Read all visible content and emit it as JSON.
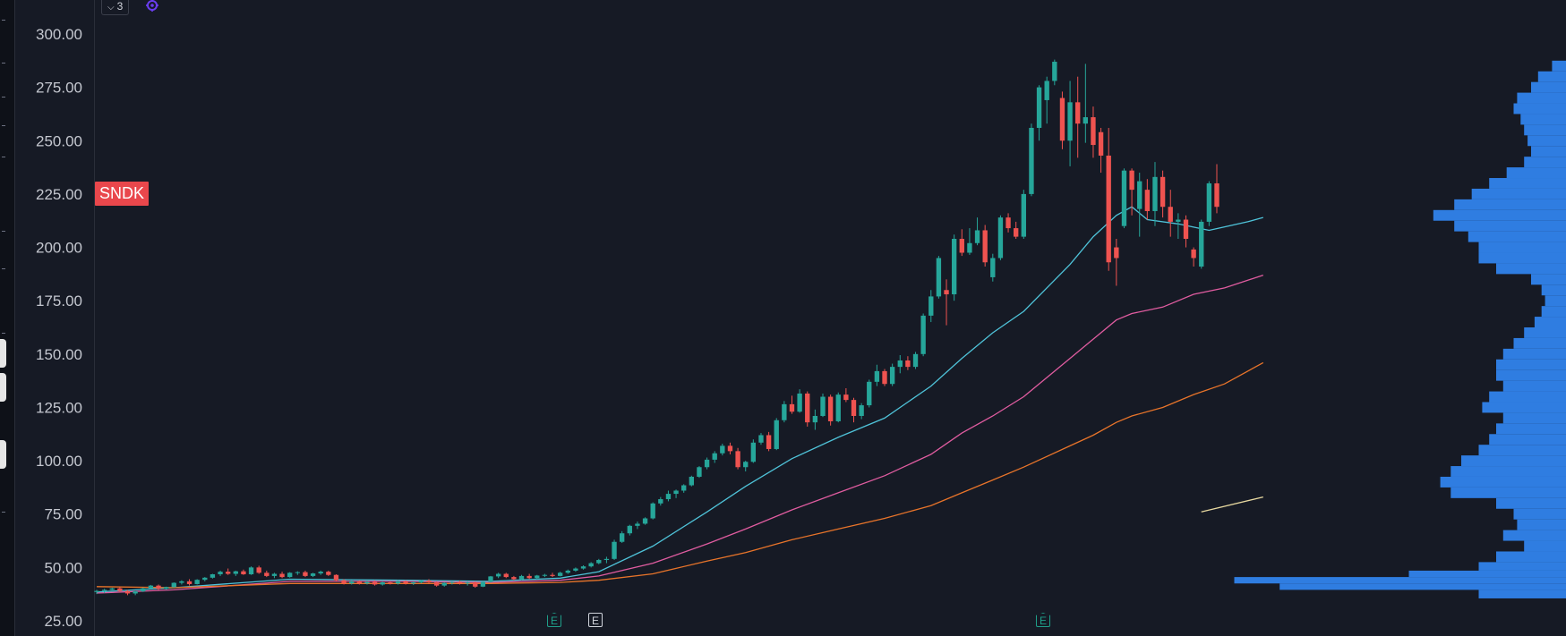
{
  "header": {
    "legend_count": "3",
    "legend_chevron_icon": "chevron-down-icon",
    "indicator_icon": "settings-circle-icon",
    "indicator_color": "#6a3df0"
  },
  "symbol": {
    "ticker": "SNDK",
    "badge_color": "#e9474c"
  },
  "events": [
    {
      "label": "E",
      "kind": "earnings"
    },
    {
      "label": "E",
      "kind": "other"
    },
    {
      "label": "E",
      "kind": "earnings"
    }
  ],
  "colors": {
    "background": "#161a25",
    "up": "#26a69a",
    "down": "#ef5350",
    "ma_fast": "#4fc3d9",
    "ma_mid": "#e05ca0",
    "ma_slow": "#e8742a",
    "ma_short_segment": "#e8d9a0",
    "volume_profile": "#2f7de1"
  },
  "chart_data": {
    "type": "candlestick",
    "y_axis": {
      "range": [
        25,
        315
      ],
      "tick_labels": [
        "300.00",
        "275.00",
        "250.00",
        "225.00",
        "200.00",
        "175.00",
        "150.00",
        "125.00",
        "100.00",
        "75.00",
        "50.00",
        "25.00"
      ],
      "tick_values": [
        300,
        275,
        250,
        225,
        200,
        175,
        150,
        125,
        100,
        75,
        50,
        25
      ],
      "position": "left"
    },
    "grid": false,
    "candles_ohlc": [
      [
        38.5,
        39.5,
        37.5,
        39.0
      ],
      [
        39.0,
        40.0,
        38.0,
        39.5
      ],
      [
        39.5,
        40.5,
        38.8,
        40.2
      ],
      [
        40.2,
        40.8,
        38.5,
        39.0
      ],
      [
        39.0,
        39.5,
        37.0,
        37.8
      ],
      [
        37.8,
        39.0,
        37.0,
        38.8
      ],
      [
        38.8,
        40.5,
        38.5,
        40.2
      ],
      [
        40.2,
        41.8,
        40.0,
        41.5
      ],
      [
        41.5,
        42.0,
        39.5,
        40.0
      ],
      [
        40.0,
        41.0,
        39.5,
        40.8
      ],
      [
        40.8,
        43.0,
        40.5,
        42.8
      ],
      [
        42.8,
        44.0,
        42.0,
        43.5
      ],
      [
        43.5,
        44.5,
        41.5,
        42.2
      ],
      [
        42.2,
        44.5,
        42.0,
        44.2
      ],
      [
        44.2,
        45.5,
        43.5,
        45.2
      ],
      [
        45.2,
        47.0,
        44.8,
        46.8
      ],
      [
        46.8,
        48.5,
        46.0,
        48.0
      ],
      [
        48.0,
        49.5,
        46.5,
        47.0
      ],
      [
        47.0,
        48.5,
        46.0,
        48.2
      ],
      [
        48.2,
        49.0,
        46.5,
        46.8
      ],
      [
        46.8,
        50.5,
        46.5,
        50.0
      ],
      [
        50.0,
        50.8,
        47.0,
        47.5
      ],
      [
        47.5,
        48.5,
        45.5,
        46.0
      ],
      [
        46.0,
        47.5,
        45.0,
        47.0
      ],
      [
        47.0,
        48.0,
        45.0,
        45.5
      ],
      [
        45.5,
        47.8,
        45.2,
        47.5
      ],
      [
        47.5,
        48.2,
        46.5,
        47.8
      ],
      [
        47.8,
        48.5,
        45.5,
        46.0
      ],
      [
        46.0,
        47.5,
        45.5,
        47.2
      ],
      [
        47.2,
        48.5,
        46.5,
        48.0
      ],
      [
        48.0,
        48.5,
        46.0,
        46.5
      ],
      [
        46.5,
        46.8,
        43.5,
        44.0
      ],
      [
        44.0,
        44.5,
        42.0,
        42.5
      ],
      [
        42.5,
        44.0,
        42.0,
        43.5
      ],
      [
        43.5,
        44.0,
        42.0,
        42.5
      ],
      [
        42.5,
        43.8,
        42.0,
        43.2
      ],
      [
        43.2,
        44.0,
        41.5,
        42.0
      ],
      [
        42.0,
        43.5,
        41.5,
        43.0
      ],
      [
        43.0,
        43.5,
        42.0,
        42.5
      ],
      [
        42.5,
        44.0,
        42.0,
        43.5
      ],
      [
        43.5,
        44.0,
        42.0,
        42.5
      ],
      [
        42.5,
        43.5,
        41.8,
        43.0
      ],
      [
        43.0,
        44.0,
        42.5,
        43.8
      ],
      [
        43.8,
        44.5,
        42.5,
        43.0
      ],
      [
        43.0,
        43.5,
        41.0,
        41.5
      ],
      [
        41.5,
        43.0,
        41.0,
        42.8
      ],
      [
        42.8,
        43.5,
        42.0,
        43.2
      ],
      [
        43.2,
        43.8,
        42.0,
        42.5
      ],
      [
        42.5,
        43.5,
        41.5,
        43.0
      ],
      [
        43.0,
        43.5,
        40.5,
        41.0
      ],
      [
        41.0,
        43.5,
        40.8,
        43.2
      ],
      [
        43.2,
        46.0,
        43.0,
        45.8
      ],
      [
        45.8,
        47.5,
        45.0,
        47.0
      ],
      [
        47.0,
        47.5,
        45.0,
        45.5
      ],
      [
        45.5,
        46.0,
        44.0,
        44.5
      ],
      [
        44.5,
        46.5,
        44.0,
        46.0
      ],
      [
        46.0,
        47.0,
        44.5,
        45.0
      ],
      [
        45.0,
        46.5,
        44.5,
        46.2
      ],
      [
        46.2,
        47.0,
        45.5,
        46.5
      ],
      [
        46.5,
        47.5,
        45.5,
        46.0
      ],
      [
        46.0,
        48.0,
        45.8,
        47.5
      ],
      [
        47.5,
        49.0,
        47.0,
        48.5
      ],
      [
        48.5,
        50.0,
        48.0,
        49.5
      ],
      [
        49.5,
        51.0,
        49.0,
        50.5
      ],
      [
        50.5,
        52.5,
        50.0,
        52.0
      ],
      [
        52.0,
        54.0,
        51.5,
        53.5
      ],
      [
        53.5,
        55.0,
        52.0,
        54.0
      ],
      [
        54.0,
        63.0,
        53.5,
        62.0
      ],
      [
        62.0,
        67.0,
        61.5,
        66.0
      ],
      [
        66.0,
        70.0,
        65.0,
        69.5
      ],
      [
        69.5,
        71.5,
        68.0,
        70.5
      ],
      [
        70.5,
        73.5,
        70.0,
        73.0
      ],
      [
        73.0,
        80.5,
        72.5,
        80.0
      ],
      [
        80.0,
        83.0,
        79.0,
        82.0
      ],
      [
        82.0,
        86.0,
        81.0,
        84.5
      ],
      [
        84.5,
        86.5,
        82.5,
        86.0
      ],
      [
        86.0,
        89.0,
        85.0,
        88.5
      ],
      [
        88.5,
        93.0,
        88.0,
        92.5
      ],
      [
        92.5,
        97.5,
        92.0,
        97.0
      ],
      [
        97.0,
        101.5,
        96.0,
        100.5
      ],
      [
        100.5,
        104.5,
        99.0,
        103.5
      ],
      [
        103.5,
        108.0,
        102.5,
        107.0
      ],
      [
        107.0,
        108.5,
        103.0,
        104.5
      ],
      [
        104.5,
        106.0,
        96.0,
        97.0
      ],
      [
        97.0,
        100.0,
        95.0,
        99.5
      ],
      [
        99.5,
        110.0,
        99.0,
        108.5
      ],
      [
        108.5,
        113.0,
        107.5,
        112.0
      ],
      [
        112.0,
        113.5,
        104.5,
        105.5
      ],
      [
        105.5,
        120.0,
        105.0,
        119.0
      ],
      [
        119.0,
        128.0,
        118.0,
        126.5
      ],
      [
        126.5,
        130.5,
        122.0,
        123.0
      ],
      [
        123.0,
        133.5,
        122.5,
        131.5
      ],
      [
        131.5,
        132.5,
        116.0,
        118.0
      ],
      [
        118.0,
        124.0,
        114.5,
        121.0
      ],
      [
        121.0,
        131.5,
        120.5,
        130.0
      ],
      [
        130.0,
        131.0,
        116.5,
        118.5
      ],
      [
        118.5,
        132.0,
        118.0,
        131.0
      ],
      [
        131.0,
        134.0,
        127.5,
        128.5
      ],
      [
        128.5,
        129.5,
        118.0,
        121.0
      ],
      [
        121.0,
        127.0,
        119.5,
        126.0
      ],
      [
        126.0,
        138.0,
        125.0,
        137.0
      ],
      [
        137.0,
        145.0,
        135.0,
        142.0
      ],
      [
        142.0,
        143.0,
        135.0,
        136.0
      ],
      [
        136.0,
        145.5,
        135.0,
        144.0
      ],
      [
        144.0,
        149.5,
        141.0,
        147.0
      ],
      [
        147.0,
        149.0,
        142.5,
        144.0
      ],
      [
        144.0,
        151.0,
        143.0,
        150.0
      ],
      [
        150.0,
        169.0,
        149.0,
        168.0
      ],
      [
        168.0,
        180.0,
        165.0,
        177.0
      ],
      [
        177.0,
        196.0,
        176.0,
        195.0
      ],
      [
        180.0,
        185.0,
        163.5,
        178.0
      ],
      [
        178.0,
        206.0,
        175.0,
        204.0
      ],
      [
        204.0,
        208.5,
        196.0,
        197.5
      ],
      [
        197.5,
        209.0,
        196.5,
        202.0
      ],
      [
        202.0,
        214.0,
        201.0,
        208.0
      ],
      [
        208.0,
        210.5,
        191.0,
        193.0
      ],
      [
        186.0,
        197.0,
        184.0,
        195.0
      ],
      [
        195.0,
        215.0,
        194.0,
        214.0
      ],
      [
        214.0,
        216.0,
        207.0,
        209.0
      ],
      [
        209.0,
        212.0,
        204.0,
        205.0
      ],
      [
        205.0,
        227.0,
        204.0,
        225.0
      ],
      [
        225.0,
        258.0,
        224.0,
        256.0
      ],
      [
        256.0,
        276.0,
        250.0,
        275.0
      ],
      [
        269.0,
        280.0,
        258.0,
        278.0
      ],
      [
        278.0,
        288.0,
        276.0,
        287.0
      ],
      [
        270.0,
        273.0,
        246.0,
        250.0
      ],
      [
        250.0,
        278.0,
        238.0,
        268.0
      ],
      [
        268.0,
        280.0,
        242.0,
        258.0
      ],
      [
        258.0,
        286.0,
        249.0,
        261.0
      ],
      [
        261.0,
        266.0,
        242.0,
        248.0
      ],
      [
        254.0,
        256.0,
        235.0,
        243.0
      ],
      [
        243.0,
        256.0,
        189.0,
        193.0
      ],
      [
        200.0,
        204.0,
        182.0,
        195.0
      ],
      [
        210.0,
        237.0,
        209.0,
        236.0
      ],
      [
        236.0,
        237.0,
        215.0,
        227.0
      ],
      [
        218.0,
        235.0,
        205.0,
        231.0
      ],
      [
        227.0,
        232.0,
        213.0,
        217.0
      ],
      [
        217.0,
        240.0,
        210.0,
        233.0
      ],
      [
        233.0,
        236.0,
        214.0,
        219.0
      ],
      [
        219.0,
        227.0,
        205.0,
        212.0
      ],
      [
        212.0,
        216.0,
        204.0,
        213.0
      ],
      [
        213.0,
        215.0,
        200.0,
        204.0
      ],
      [
        199.0,
        200.0,
        191.0,
        195.0
      ],
      [
        191.0,
        213.0,
        190.0,
        212.0
      ],
      [
        212.0,
        231.0,
        210.0,
        230.0
      ],
      [
        230.0,
        239.0,
        216.0,
        219.0
      ]
    ],
    "moving_averages": [
      {
        "color": "#4fc3d9",
        "values": [
          [
            0,
            38.5
          ],
          [
            10,
            40.5
          ],
          [
            25,
            44.5
          ],
          [
            40,
            44.0
          ],
          [
            51,
            43.5
          ],
          [
            60,
            45.0
          ],
          [
            65,
            48.0
          ],
          [
            72,
            60.0
          ],
          [
            79,
            76.0
          ],
          [
            84,
            88.0
          ],
          [
            90,
            101.0
          ],
          [
            96,
            111.0
          ],
          [
            102,
            120.0
          ],
          [
            108,
            135.0
          ],
          [
            112,
            148.0
          ],
          [
            116,
            160.0
          ],
          [
            120,
            170.0
          ],
          [
            126,
            192.0
          ],
          [
            129,
            205.0
          ],
          [
            132,
            215.0
          ],
          [
            134,
            219.0
          ],
          [
            136,
            213.0
          ],
          [
            140,
            211.0
          ],
          [
            144,
            208.0
          ],
          [
            149,
            212.0
          ],
          [
            151,
            214.0
          ]
        ]
      },
      {
        "color": "#e05ca0",
        "values": [
          [
            0,
            38.0
          ],
          [
            10,
            39.5
          ],
          [
            25,
            43.5
          ],
          [
            40,
            43.5
          ],
          [
            51,
            43.0
          ],
          [
            60,
            44.0
          ],
          [
            65,
            46.0
          ],
          [
            72,
            52.0
          ],
          [
            79,
            61.0
          ],
          [
            84,
            68.0
          ],
          [
            90,
            77.0
          ],
          [
            96,
            85.0
          ],
          [
            102,
            93.0
          ],
          [
            108,
            103.0
          ],
          [
            112,
            113.0
          ],
          [
            116,
            121.0
          ],
          [
            120,
            130.0
          ],
          [
            126,
            148.0
          ],
          [
            129,
            157.0
          ],
          [
            132,
            166.0
          ],
          [
            134,
            169.0
          ],
          [
            138,
            172.0
          ],
          [
            142,
            178.0
          ],
          [
            146,
            181.0
          ],
          [
            151,
            187.0
          ]
        ]
      },
      {
        "color": "#e8742a",
        "values": [
          [
            0,
            41.0
          ],
          [
            10,
            40.5
          ],
          [
            25,
            42.5
          ],
          [
            40,
            42.5
          ],
          [
            51,
            42.5
          ],
          [
            60,
            43.0
          ],
          [
            65,
            44.0
          ],
          [
            72,
            47.0
          ],
          [
            79,
            53.0
          ],
          [
            84,
            57.0
          ],
          [
            90,
            63.0
          ],
          [
            96,
            68.0
          ],
          [
            102,
            73.0
          ],
          [
            108,
            79.0
          ],
          [
            112,
            85.0
          ],
          [
            116,
            91.0
          ],
          [
            120,
            97.0
          ],
          [
            126,
            107.0
          ],
          [
            129,
            112.0
          ],
          [
            132,
            118.0
          ],
          [
            134,
            121.0
          ],
          [
            138,
            125.0
          ],
          [
            142,
            131.0
          ],
          [
            146,
            136.0
          ],
          [
            151,
            146.0
          ]
        ]
      },
      {
        "color": "#e8d9a0",
        "values": [
          [
            143,
            76.0
          ],
          [
            151,
            83.0
          ]
        ]
      }
    ],
    "volume_profile": {
      "side": "right",
      "bins": [
        [
          285,
          0.04
        ],
        [
          280,
          0.08
        ],
        [
          275,
          0.1
        ],
        [
          270,
          0.14
        ],
        [
          265,
          0.15
        ],
        [
          260,
          0.13
        ],
        [
          255,
          0.12
        ],
        [
          250,
          0.11
        ],
        [
          245,
          0.1
        ],
        [
          240,
          0.12
        ],
        [
          235,
          0.17
        ],
        [
          230,
          0.22
        ],
        [
          225,
          0.27
        ],
        [
          220,
          0.32
        ],
        [
          215,
          0.38
        ],
        [
          210,
          0.32
        ],
        [
          205,
          0.28
        ],
        [
          200,
          0.25
        ],
        [
          195,
          0.25
        ],
        [
          190,
          0.2
        ],
        [
          185,
          0.1
        ],
        [
          180,
          0.07
        ],
        [
          175,
          0.06
        ],
        [
          170,
          0.07
        ],
        [
          165,
          0.09
        ],
        [
          160,
          0.12
        ],
        [
          155,
          0.15
        ],
        [
          150,
          0.18
        ],
        [
          145,
          0.2
        ],
        [
          140,
          0.2
        ],
        [
          135,
          0.18
        ],
        [
          130,
          0.22
        ],
        [
          125,
          0.24
        ],
        [
          120,
          0.18
        ],
        [
          115,
          0.2
        ],
        [
          110,
          0.22
        ],
        [
          105,
          0.25
        ],
        [
          100,
          0.3
        ],
        [
          95,
          0.33
        ],
        [
          90,
          0.36
        ],
        [
          85,
          0.33
        ],
        [
          80,
          0.2
        ],
        [
          75,
          0.15
        ],
        [
          70,
          0.14
        ],
        [
          65,
          0.18
        ],
        [
          60,
          0.12
        ],
        [
          55,
          0.2
        ],
        [
          50,
          0.25
        ],
        [
          46,
          0.45
        ],
        [
          43,
          0.95
        ],
        [
          40,
          0.82
        ],
        [
          37,
          0.25
        ]
      ]
    }
  }
}
